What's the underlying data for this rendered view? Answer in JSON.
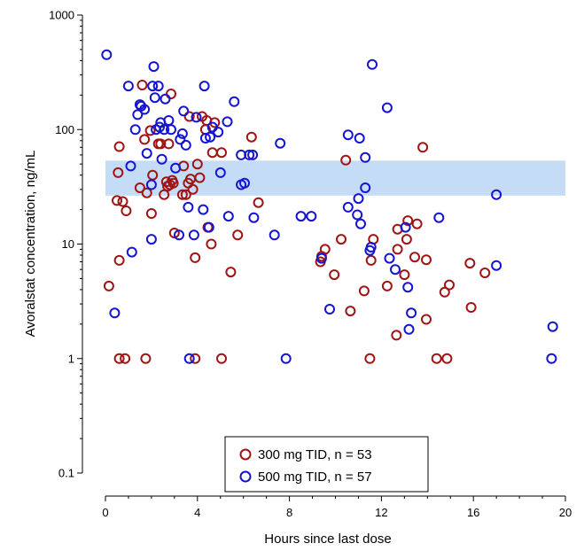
{
  "chart_data": {
    "type": "scatter",
    "xlabel": "Hours since last dose",
    "ylabel": "Avoralstat concentration, ng/mL",
    "xlim": [
      0,
      20
    ],
    "ylim": [
      0.1,
      1000
    ],
    "yscale": "log",
    "x_ticks": [
      0,
      4,
      8,
      12,
      16,
      20
    ],
    "y_ticks": [
      0.1,
      1,
      10,
      100,
      1000
    ],
    "x_tick_labels": [
      "0",
      "4",
      "8",
      "12",
      "16",
      "20"
    ],
    "y_tick_labels": [
      "0.1",
      "1",
      "10",
      "100",
      "1000"
    ],
    "grid": false,
    "legend_position": "bottom-center",
    "shaded_band": {
      "y_low": 26.5,
      "y_high": 53.5,
      "color": "#c5dcf7"
    },
    "series": [
      {
        "name": "300 mg TID, n = 53",
        "color": "#a01414",
        "points": [
          [
            0.15,
            4.3
          ],
          [
            0.5,
            24
          ],
          [
            0.55,
            42
          ],
          [
            0.6,
            71
          ],
          [
            0.6,
            7.2
          ],
          [
            0.75,
            23.5
          ],
          [
            0.9,
            19.5
          ],
          [
            1.5,
            31
          ],
          [
            1.6,
            245
          ],
          [
            1.7,
            82
          ],
          [
            1.8,
            28
          ],
          [
            1.95,
            98
          ],
          [
            2.0,
            18.5
          ],
          [
            2.05,
            40
          ],
          [
            2.3,
            75
          ],
          [
            2.4,
            75
          ],
          [
            2.55,
            27
          ],
          [
            2.65,
            35
          ],
          [
            2.7,
            32
          ],
          [
            2.75,
            75
          ],
          [
            2.8,
            33
          ],
          [
            2.85,
            205
          ],
          [
            2.9,
            36
          ],
          [
            2.95,
            34
          ],
          [
            3.0,
            12.5
          ],
          [
            3.35,
            27
          ],
          [
            3.4,
            48
          ],
          [
            3.5,
            27
          ],
          [
            3.6,
            34
          ],
          [
            3.65,
            130
          ],
          [
            3.7,
            37
          ],
          [
            3.8,
            30
          ],
          [
            3.9,
            7.6
          ],
          [
            4.0,
            50
          ],
          [
            4.1,
            38
          ],
          [
            4.2,
            130
          ],
          [
            4.35,
            100
          ],
          [
            4.4,
            120
          ],
          [
            4.45,
            14
          ],
          [
            4.6,
            10
          ],
          [
            4.65,
            63
          ],
          [
            4.75,
            115
          ],
          [
            5.05,
            63
          ],
          [
            5.45,
            5.7
          ],
          [
            5.75,
            12
          ],
          [
            6.35,
            86
          ],
          [
            6.65,
            23
          ],
          [
            9.35,
            7.0
          ],
          [
            9.4,
            7.8
          ],
          [
            9.55,
            9.0
          ],
          [
            9.95,
            5.4
          ],
          [
            10.25,
            11
          ],
          [
            10.45,
            54
          ],
          [
            10.65,
            2.6
          ],
          [
            11.25,
            3.9
          ],
          [
            11.55,
            7.2
          ],
          [
            11.65,
            11
          ],
          [
            12.25,
            4.3
          ],
          [
            12.65,
            1.6
          ],
          [
            12.7,
            9.0
          ],
          [
            12.7,
            13.5
          ],
          [
            13.0,
            5.4
          ],
          [
            13.1,
            11
          ],
          [
            13.15,
            16
          ],
          [
            13.45,
            7.7
          ],
          [
            13.55,
            15
          ],
          [
            13.8,
            70
          ],
          [
            13.95,
            7.3
          ],
          [
            13.95,
            2.2
          ],
          [
            14.75,
            3.8
          ],
          [
            14.95,
            4.4
          ],
          [
            15.85,
            6.8
          ],
          [
            15.9,
            2.8
          ],
          [
            16.5,
            5.6
          ],
          [
            0.6,
            1.0
          ],
          [
            0.85,
            1.0
          ],
          [
            1.75,
            1.0
          ],
          [
            3.9,
            1.0
          ],
          [
            5.05,
            1.0
          ],
          [
            11.5,
            1.0
          ],
          [
            14.4,
            1.0
          ],
          [
            14.85,
            1.0
          ]
        ]
      },
      {
        "name": "500 mg TID, n = 57",
        "color": "#1414d2",
        "points": [
          [
            0.05,
            450
          ],
          [
            0.4,
            2.5
          ],
          [
            1.0,
            240
          ],
          [
            1.1,
            48
          ],
          [
            1.15,
            8.5
          ],
          [
            1.3,
            100
          ],
          [
            1.4,
            135
          ],
          [
            1.5,
            165
          ],
          [
            1.55,
            160
          ],
          [
            1.7,
            150
          ],
          [
            1.8,
            62
          ],
          [
            2.0,
            33
          ],
          [
            2.0,
            11
          ],
          [
            2.05,
            240
          ],
          [
            2.1,
            355
          ],
          [
            2.15,
            190
          ],
          [
            2.2,
            100
          ],
          [
            2.3,
            240
          ],
          [
            2.35,
            105
          ],
          [
            2.4,
            115
          ],
          [
            2.45,
            55
          ],
          [
            2.55,
            100
          ],
          [
            2.6,
            185
          ],
          [
            2.75,
            120
          ],
          [
            2.85,
            100
          ],
          [
            3.05,
            46
          ],
          [
            3.2,
            12
          ],
          [
            3.25,
            82
          ],
          [
            3.35,
            92
          ],
          [
            3.4,
            145
          ],
          [
            3.5,
            73
          ],
          [
            3.6,
            21
          ],
          [
            3.85,
            12
          ],
          [
            3.95,
            128
          ],
          [
            4.25,
            20
          ],
          [
            4.3,
            240
          ],
          [
            4.35,
            84
          ],
          [
            4.5,
            14
          ],
          [
            4.55,
            86
          ],
          [
            4.65,
            105
          ],
          [
            4.9,
            95
          ],
          [
            5.0,
            42
          ],
          [
            5.3,
            117
          ],
          [
            5.35,
            17.5
          ],
          [
            5.6,
            175
          ],
          [
            5.9,
            33
          ],
          [
            5.9,
            60
          ],
          [
            6.05,
            34
          ],
          [
            6.25,
            60
          ],
          [
            6.4,
            60
          ],
          [
            6.45,
            17
          ],
          [
            7.35,
            12
          ],
          [
            7.6,
            76
          ],
          [
            8.5,
            17.5
          ],
          [
            8.95,
            17.5
          ],
          [
            9.4,
            7.5
          ],
          [
            9.75,
            2.7
          ],
          [
            10.55,
            90
          ],
          [
            10.55,
            21
          ],
          [
            10.95,
            18
          ],
          [
            11.0,
            25
          ],
          [
            11.05,
            84
          ],
          [
            11.1,
            15
          ],
          [
            11.3,
            57
          ],
          [
            11.3,
            31
          ],
          [
            11.5,
            8.8
          ],
          [
            11.55,
            9.4
          ],
          [
            11.6,
            370
          ],
          [
            12.25,
            155
          ],
          [
            12.35,
            7.5
          ],
          [
            12.6,
            6.0
          ],
          [
            13.05,
            14
          ],
          [
            13.15,
            4.2
          ],
          [
            13.2,
            1.8
          ],
          [
            13.3,
            2.5
          ],
          [
            14.5,
            17
          ],
          [
            17.0,
            27
          ],
          [
            17.0,
            6.5
          ],
          [
            19.45,
            1.9
          ],
          [
            3.65,
            1.0
          ],
          [
            7.85,
            1.0
          ],
          [
            19.4,
            1.0
          ]
        ]
      }
    ]
  },
  "legend": {
    "items": [
      {
        "label": "300 mg TID, n = 53",
        "color": "#a01414"
      },
      {
        "label": "500 mg TID, n = 57",
        "color": "#1414d2"
      }
    ]
  }
}
